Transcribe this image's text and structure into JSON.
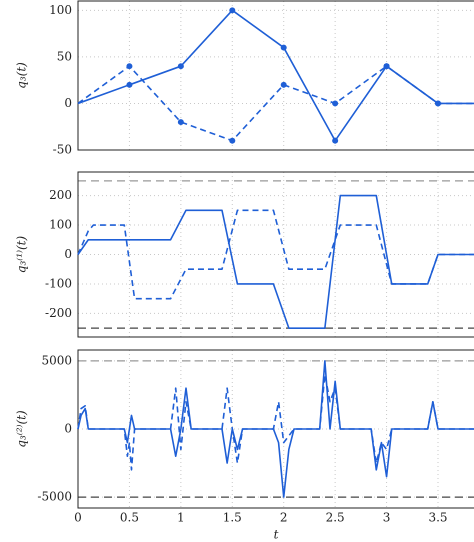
{
  "chart_data": [
    {
      "type": "line",
      "ylabel": "q₃(t)",
      "x": [
        0,
        0.5,
        1,
        1.5,
        2,
        2.5,
        3,
        3.5,
        3.85
      ],
      "xlim": [
        0,
        3.85
      ],
      "xticks": [
        0,
        0.5,
        1,
        1.5,
        2,
        2.5,
        3,
        3.5
      ],
      "ylim": [
        -50,
        110
      ],
      "yticks": [
        -50,
        0,
        50,
        100
      ],
      "grid": true,
      "series": [
        {
          "color": "#1f5fd6",
          "dash": false,
          "markers": true,
          "values": [
            0,
            20,
            40,
            100,
            60,
            -40,
            40,
            0,
            0
          ]
        },
        {
          "color": "#1f5fd6",
          "dash": true,
          "markers": true,
          "values": [
            0,
            40,
            -20,
            -40,
            20,
            0,
            40,
            0,
            0
          ]
        }
      ]
    },
    {
      "type": "line",
      "ylabel": "q₃⁽¹⁾(t)",
      "x": [
        0,
        0.1,
        0.15,
        0.45,
        0.55,
        0.9,
        1.05,
        1.4,
        1.55,
        1.9,
        2.05,
        2.4,
        2.55,
        2.9,
        3.05,
        3.4,
        3.5,
        3.85
      ],
      "xlim": [
        0,
        3.85
      ],
      "xticks": [
        0,
        0.5,
        1,
        1.5,
        2,
        2.5,
        3,
        3.5
      ],
      "ylim": [
        -280,
        280
      ],
      "yticks": [
        -200,
        -100,
        0,
        100,
        200
      ],
      "grid": true,
      "limits": [
        -250,
        250
      ],
      "series": [
        {
          "color": "#1f5fd6",
          "dash": false,
          "markers": false,
          "values": [
            0,
            50,
            50,
            50,
            50,
            50,
            150,
            150,
            -100,
            -100,
            -250,
            -250,
            200,
            200,
            -100,
            -100,
            0,
            0
          ]
        },
        {
          "color": "#1f5fd6",
          "dash": true,
          "markers": false,
          "values": [
            0,
            80,
            100,
            100,
            -150,
            -150,
            -50,
            -50,
            150,
            150,
            -50,
            -50,
            100,
            100,
            -100,
            -100,
            0,
            0
          ]
        }
      ]
    },
    {
      "type": "line",
      "ylabel": "q₃⁽²⁾(t)",
      "xlabel": "t",
      "x": [
        0,
        0.03,
        0.07,
        0.1,
        0.15,
        0.45,
        0.48,
        0.5,
        0.52,
        0.55,
        0.9,
        0.95,
        1.0,
        1.05,
        1.1,
        1.4,
        1.45,
        1.5,
        1.55,
        1.6,
        1.9,
        1.95,
        2.0,
        2.05,
        2.1,
        2.35,
        2.4,
        2.45,
        2.5,
        2.55,
        2.85,
        2.9,
        2.95,
        3.0,
        3.05,
        3.35,
        3.4,
        3.45,
        3.5,
        3.55,
        3.85
      ],
      "xlim": [
        0,
        3.85
      ],
      "xticks": [
        0,
        0.5,
        1,
        1.5,
        2,
        2.5,
        3,
        3.5
      ],
      "ylim": [
        -5800,
        5800
      ],
      "yticks": [
        -5000,
        0,
        5000
      ],
      "grid": true,
      "limits": [
        -5000,
        5000
      ],
      "series": [
        {
          "color": "#1f5fd6",
          "dash": false,
          "markers": false,
          "values": [
            0,
            1000,
            1500,
            0,
            0,
            0,
            -1000,
            0,
            1000,
            0,
            0,
            -2000,
            0,
            3000,
            0,
            0,
            -2500,
            0,
            -1500,
            0,
            0,
            -1000,
            -5000,
            -1500,
            0,
            0,
            5000,
            0,
            3500,
            0,
            0,
            -3000,
            -1000,
            -3500,
            0,
            0,
            0,
            2000,
            0,
            0,
            0
          ]
        },
        {
          "color": "#1f5fd6",
          "dash": true,
          "markers": false,
          "values": [
            0,
            1500,
            1700,
            0,
            0,
            0,
            -2000,
            -1000,
            -3000,
            0,
            0,
            3000,
            -1500,
            2000,
            0,
            0,
            3000,
            0,
            -2500,
            0,
            0,
            2000,
            -1000,
            -500,
            0,
            0,
            4000,
            2000,
            3000,
            0,
            0,
            -2500,
            -1000,
            -1500,
            0,
            0,
            0,
            2000,
            0,
            0,
            0
          ]
        }
      ]
    }
  ]
}
